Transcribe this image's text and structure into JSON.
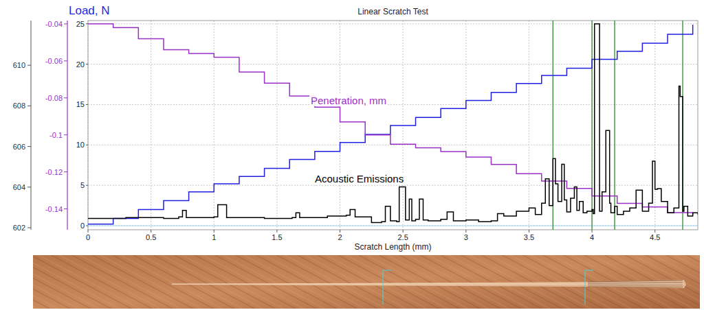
{
  "chart_data": {
    "type": "line",
    "title": "Linear Scratch Test",
    "x_label": "Scratch Length (mm)",
    "y_label": "Load, N",
    "xlim": [
      0,
      4.84
    ],
    "xticks": [
      0,
      0.5,
      1,
      1.5,
      2,
      2.5,
      3,
      3.5,
      4,
      4.5
    ],
    "ylim": [
      -0.5,
      25.4
    ],
    "yticks": [
      0,
      5,
      10,
      15,
      20,
      25
    ],
    "y2lim": [
      -0.1513,
      -0.0382
    ],
    "y2ticks": [
      -0.04,
      -0.06,
      -0.08,
      -0.1,
      -0.12,
      -0.14
    ],
    "y3lim": [
      601.9,
      612.2
    ],
    "y3ticks": [
      602,
      604,
      606,
      608,
      610
    ],
    "grid": true,
    "vertical_lines": [
      3.69,
      4.0,
      4.18,
      4.72
    ],
    "series": [
      {
        "color": "#1f1fe6",
        "line_style": "step",
        "x": [
          0,
          0.2,
          0.4,
          0.6,
          0.8,
          1.0,
          1.2,
          1.4,
          1.6,
          1.8,
          2.0,
          2.2,
          2.4,
          2.6,
          2.8,
          3.0,
          3.2,
          3.4,
          3.6,
          3.8,
          4.0,
          4.2,
          4.4,
          4.6,
          4.8
        ],
        "values": [
          0.2,
          0.9,
          2.0,
          3.1,
          4.2,
          5.2,
          6.1,
          7.1,
          8.2,
          9.2,
          10.3,
          11.3,
          12.4,
          13.4,
          14.5,
          15.5,
          16.5,
          17.6,
          18.6,
          19.5,
          20.6,
          21.6,
          22.6,
          23.7,
          24.9
        ]
      },
      {
        "name": "Penetration, mm",
        "color": "#9b30c8",
        "axis": "y2",
        "line_style": "step",
        "x": [
          0,
          0.2,
          0.4,
          0.6,
          0.8,
          1.0,
          1.2,
          1.4,
          1.6,
          1.8,
          2.0,
          2.2,
          2.4,
          2.6,
          2.8,
          3.0,
          3.2,
          3.4,
          3.6,
          3.8,
          4.0,
          4.2,
          4.4,
          4.6,
          4.8
        ],
        "values": [
          -0.04,
          -0.042,
          -0.048,
          -0.054,
          -0.056,
          -0.058,
          -0.066,
          -0.072,
          -0.079,
          -0.085,
          -0.093,
          -0.1,
          -0.105,
          -0.107,
          -0.109,
          -0.112,
          -0.116,
          -0.121,
          -0.125,
          -0.129,
          -0.133,
          -0.137,
          -0.139,
          -0.142,
          -0.143
        ]
      },
      {
        "name": "Acoustic Emissions",
        "color": "#000000",
        "line_style": "step",
        "x": [
          0,
          0.3,
          0.6,
          0.72,
          0.75,
          0.78,
          1.0,
          1.03,
          1.06,
          1.1,
          1.4,
          1.62,
          1.65,
          1.68,
          1.9,
          2.05,
          2.08,
          2.12,
          2.25,
          2.33,
          2.36,
          2.4,
          2.45,
          2.47,
          2.5,
          2.52,
          2.55,
          2.57,
          2.6,
          2.63,
          2.66,
          2.7,
          2.8,
          2.85,
          2.9,
          3.0,
          3.1,
          3.2,
          3.25,
          3.3,
          3.4,
          3.5,
          3.55,
          3.6,
          3.63,
          3.66,
          3.69,
          3.71,
          3.73,
          3.76,
          3.78,
          3.8,
          3.83,
          3.86,
          3.88,
          3.9,
          3.93,
          3.96,
          4.0,
          4.01,
          4.02,
          4.05,
          4.06,
          4.08,
          4.11,
          4.12,
          4.14,
          4.15,
          4.18,
          4.2,
          4.25,
          4.3,
          4.35,
          4.4,
          4.45,
          4.48,
          4.5,
          4.52,
          4.55,
          4.6,
          4.65,
          4.69,
          4.7,
          4.72,
          4.73,
          4.76,
          4.8,
          4.84
        ],
        "values": [
          0.9,
          1.0,
          0.9,
          1.1,
          1.9,
          1.0,
          1.1,
          2.6,
          2.6,
          1.0,
          0.9,
          1.0,
          1.6,
          1.0,
          1.2,
          1.3,
          2.0,
          1.1,
          0.4,
          0.5,
          2.4,
          0.6,
          0.5,
          4.8,
          4.8,
          0.7,
          3.3,
          0.6,
          0.8,
          3.3,
          0.7,
          0.6,
          0.8,
          1.7,
          0.6,
          0.7,
          0.5,
          0.6,
          1.5,
          1.2,
          1.8,
          2.2,
          1.4,
          2.8,
          5.8,
          2.5,
          8.3,
          5.2,
          3.0,
          7.6,
          3.2,
          1.7,
          3.4,
          4.8,
          1.9,
          3.0,
          1.6,
          1.8,
          2.0,
          1.5,
          25.0,
          25.0,
          1.8,
          4.2,
          11.8,
          11.8,
          2.8,
          1.6,
          2.4,
          1.4,
          1.8,
          2.2,
          4.4,
          1.8,
          2.8,
          8.0,
          4.5,
          4.6,
          3.0,
          1.6,
          2.2,
          17.3,
          16.0,
          1.8,
          2.4,
          1.2,
          1.6,
          1.4
        ]
      }
    ]
  }
}
